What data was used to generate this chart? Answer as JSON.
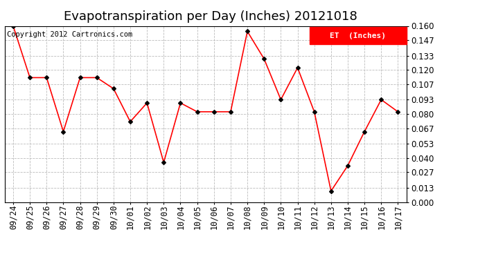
{
  "title": "Evapotranspiration per Day (Inches) 20121018",
  "copyright_text": "Copyright 2012 Cartronics.com",
  "legend_label": "ET  (Inches)",
  "x_labels": [
    "09/24",
    "09/25",
    "09/26",
    "09/27",
    "09/28",
    "09/29",
    "09/30",
    "10/01",
    "10/02",
    "10/03",
    "10/04",
    "10/05",
    "10/06",
    "10/07",
    "10/08",
    "10/09",
    "10/10",
    "10/11",
    "10/12",
    "10/13",
    "10/14",
    "10/15",
    "10/16",
    "10/17"
  ],
  "y_values": [
    0.16,
    0.113,
    0.113,
    0.064,
    0.113,
    0.113,
    0.103,
    0.073,
    0.09,
    0.036,
    0.09,
    0.082,
    0.082,
    0.082,
    0.155,
    0.13,
    0.093,
    0.122,
    0.082,
    0.01,
    0.033,
    0.064,
    0.093,
    0.082
  ],
  "ylim": [
    0.0,
    0.16
  ],
  "yticks": [
    0.0,
    0.013,
    0.027,
    0.04,
    0.053,
    0.067,
    0.08,
    0.093,
    0.107,
    0.12,
    0.133,
    0.147,
    0.16
  ],
  "line_color": "red",
  "marker": "D",
  "marker_size": 3,
  "marker_color": "black",
  "grid_color": "#bbbbbb",
  "background_color": "#ffffff",
  "title_fontsize": 13,
  "tick_fontsize": 8.5,
  "copyright_fontsize": 7.5
}
